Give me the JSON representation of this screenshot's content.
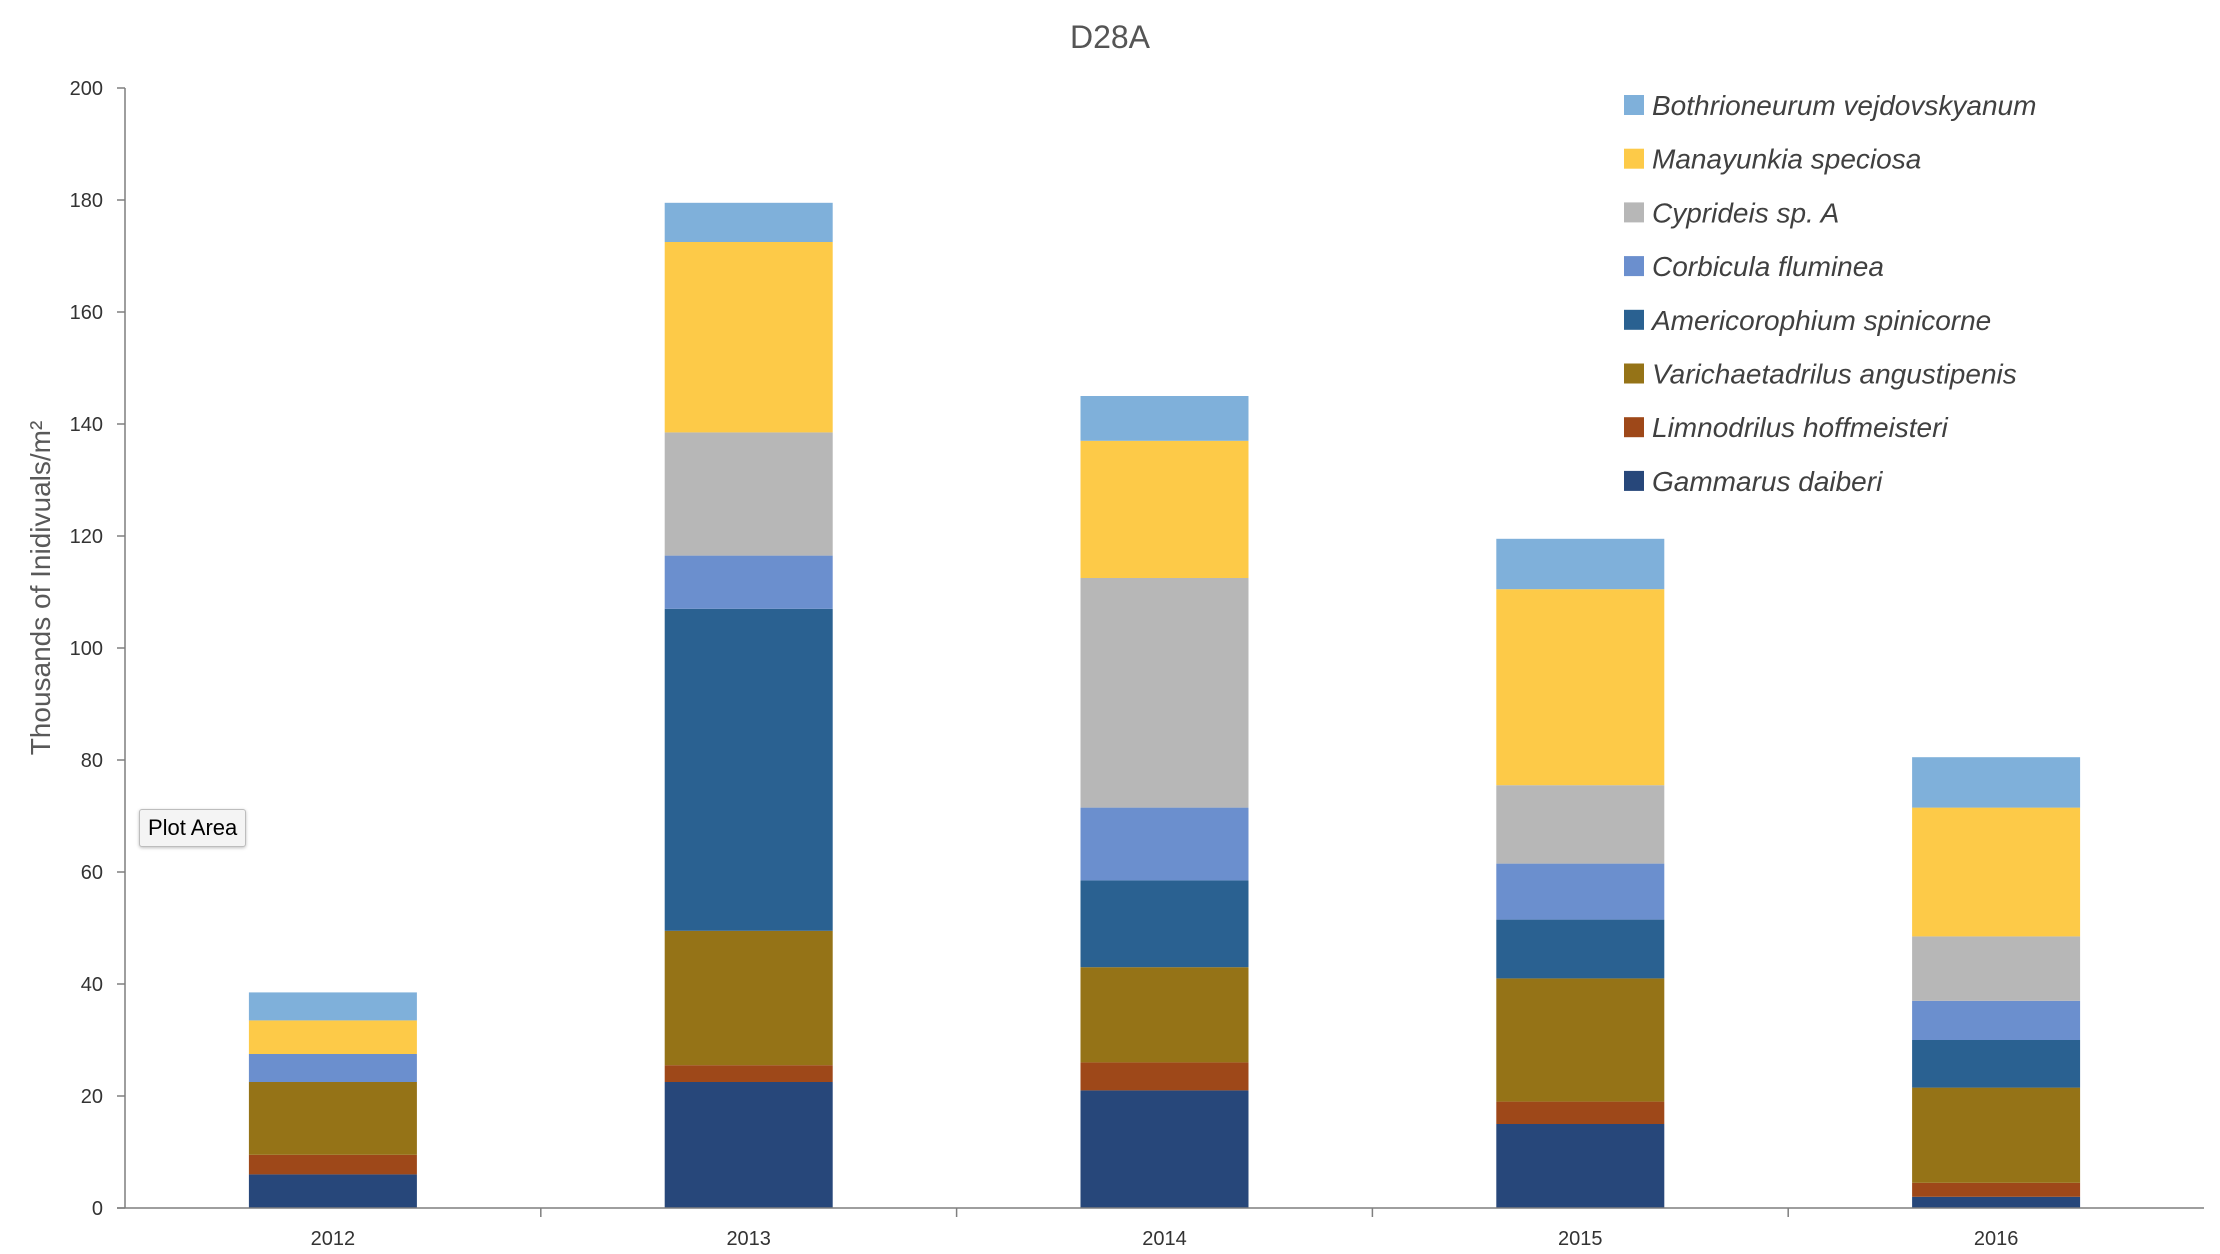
{
  "tooltip": {
    "text": "Plot Area"
  },
  "chart_data": {
    "type": "bar",
    "stacked": true,
    "title": "D28A",
    "xlabel": "",
    "ylabel": "Thousands of Inidivuals/m²",
    "ylim": [
      0,
      200
    ],
    "yticks": [
      0,
      20,
      40,
      60,
      80,
      100,
      120,
      140,
      160,
      180,
      200
    ],
    "grid": false,
    "legend_position": "top-right",
    "categories": [
      "2012",
      "2013",
      "2014",
      "2015",
      "2016"
    ],
    "series": [
      {
        "name": "Gammarus daiberi",
        "color": "#27477a",
        "values": [
          6,
          22.5,
          21,
          15,
          2
        ]
      },
      {
        "name": "Limnodrilus hoffmeisteri",
        "color": "#9e4819",
        "values": [
          3.5,
          3,
          5,
          4,
          2.5
        ]
      },
      {
        "name": "Varichaetadrilus angustipenis",
        "color": "#957317",
        "values": [
          13,
          24,
          17,
          22,
          17
        ]
      },
      {
        "name": "Americorophium spinicorne",
        "color": "#2a6191",
        "values": [
          0,
          57.5,
          15.5,
          10.5,
          8.5
        ]
      },
      {
        "name": "Corbicula fluminea",
        "color": "#6b8fce",
        "values": [
          5,
          9.5,
          13,
          10,
          7
        ]
      },
      {
        "name": "Cyprideis sp. A",
        "color": "#b7b7b7",
        "values": [
          0,
          22,
          41,
          14,
          11.5
        ]
      },
      {
        "name": "Manayunkia speciosa",
        "color": "#fdca48",
        "values": [
          6,
          34,
          24.5,
          35,
          23
        ]
      },
      {
        "name": "Bothrioneurum vejdovskyanum",
        "color": "#7fb0da",
        "values": [
          5,
          7,
          8,
          9,
          9
        ]
      }
    ]
  }
}
